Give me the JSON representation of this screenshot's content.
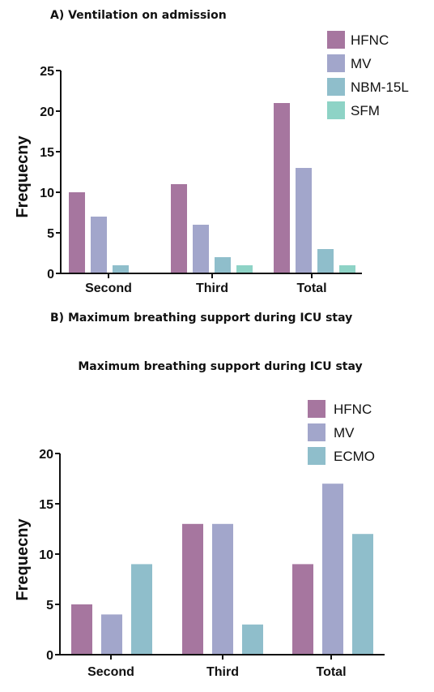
{
  "panels": [
    {
      "label": "A) Ventilation on admission"
    },
    {
      "label": "B) Maximum breathing support during ICU stay",
      "subtitle": "Maximum breathing support during ICU stay"
    }
  ],
  "chart_data": [
    {
      "type": "bar",
      "title": "A) Ventilation on admission",
      "xlabel": "",
      "ylabel": "Frequecny",
      "ylim": [
        0,
        25
      ],
      "yticks": [
        0,
        5,
        10,
        15,
        20,
        25
      ],
      "categories": [
        "Second",
        "Third",
        "Total"
      ],
      "series": [
        {
          "name": "HFNC",
          "values": [
            10,
            11,
            21
          ],
          "color": "#a6769f"
        },
        {
          "name": "MV",
          "values": [
            7,
            6,
            13
          ],
          "color": "#a2a6cb"
        },
        {
          "name": "NBM-15L",
          "values": [
            1,
            2,
            3
          ],
          "color": "#8fbecb"
        },
        {
          "name": "SFM",
          "values": [
            0,
            1,
            1
          ],
          "color": "#8ed3c6"
        }
      ],
      "legend": "top-right",
      "grid": false
    },
    {
      "type": "bar",
      "title": "Maximum breathing support during ICU stay",
      "xlabel": "",
      "ylabel": "Frequecny",
      "ylim": [
        0,
        20
      ],
      "yticks": [
        0,
        5,
        10,
        15,
        20
      ],
      "categories": [
        "Second",
        "Third",
        "Total"
      ],
      "series": [
        {
          "name": "HFNC",
          "values": [
            5,
            13,
            9
          ],
          "color": "#a6769f"
        },
        {
          "name": "MV",
          "values": [
            4,
            13,
            17
          ],
          "color": "#a2a6cb"
        },
        {
          "name": "ECMO",
          "values": [
            9,
            3,
            12
          ],
          "color": "#8fbecb"
        }
      ],
      "legend": "top-right",
      "grid": false
    }
  ]
}
